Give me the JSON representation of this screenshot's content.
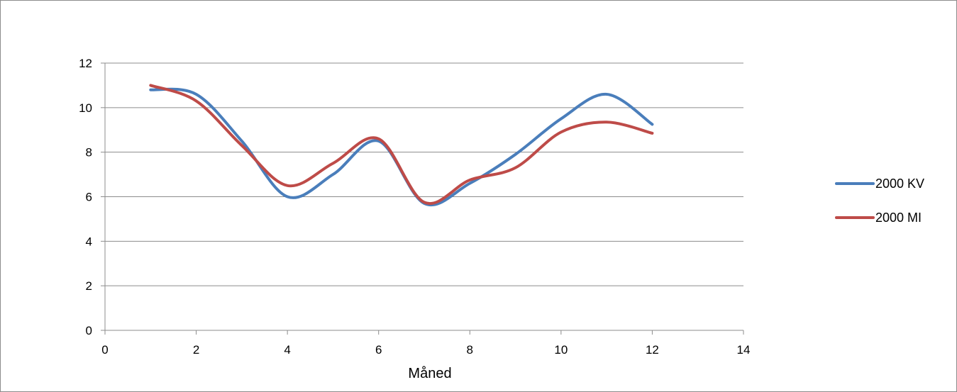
{
  "chart_data": {
    "type": "line",
    "title": "",
    "xlabel": "Måned",
    "ylabel": "",
    "xlim": [
      0,
      14
    ],
    "ylim": [
      0,
      12
    ],
    "x_ticks": [
      0,
      2,
      4,
      6,
      8,
      10,
      12,
      14
    ],
    "y_ticks": [
      0,
      2,
      4,
      6,
      8,
      10,
      12
    ],
    "grid": "horizontal",
    "smooth": true,
    "legend_position": "right",
    "x": [
      1,
      2,
      3,
      4,
      5,
      6,
      7,
      8,
      9,
      10,
      11,
      12
    ],
    "series": [
      {
        "name": "2000 KV",
        "color": "#4a7ebb",
        "values": [
          10.8,
          10.6,
          8.5,
          6.0,
          7.0,
          8.5,
          5.7,
          6.6,
          7.9,
          9.5,
          10.6,
          9.25
        ]
      },
      {
        "name": "2000 MI",
        "color": "#be4b48",
        "values": [
          11.0,
          10.3,
          8.3,
          6.5,
          7.5,
          8.6,
          5.75,
          6.75,
          7.3,
          8.9,
          9.35,
          8.85
        ]
      }
    ]
  }
}
